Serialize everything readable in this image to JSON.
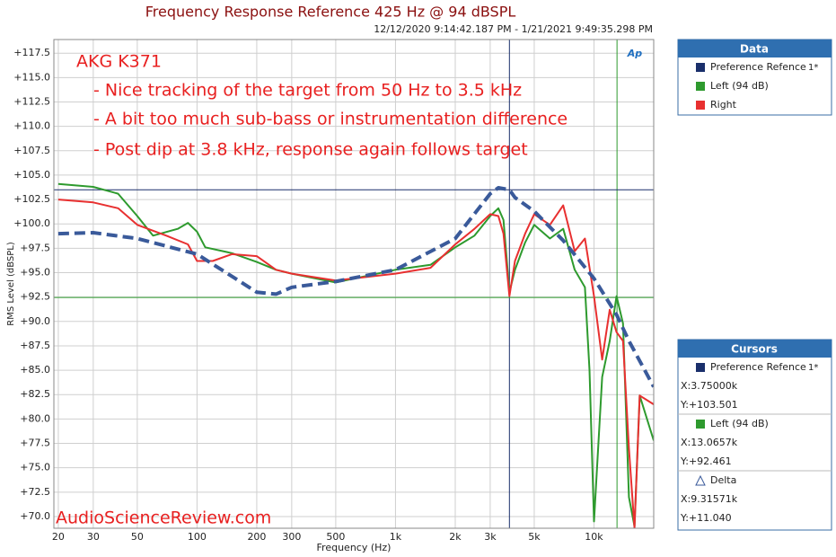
{
  "chart_data": {
    "type": "line",
    "title": "Frequency Response Reference 425 Hz @ 94 dBSPL",
    "subtitle": "12/12/2020 9:14:42.187 PM - 1/21/2021 9:49:35.298 PM",
    "annotations": [
      "AKG K371",
      "- Nice tracking of the target from 50 Hz to 3.5 kHz",
      "- A bit too much sub-bass or instrumentation difference",
      "- Post dip at 3.8 kHz, response again follows target"
    ],
    "watermark": "AudioScienceReview.com",
    "logo": "Ap",
    "xlabel": "Frequency (Hz)",
    "ylabel": "RMS Level (dBSPL)",
    "xlog": true,
    "grid": true,
    "xlim": [
      19,
      20000
    ],
    "ylim": [
      68.8,
      118.9
    ],
    "xticks": [
      20,
      30,
      50,
      100,
      200,
      300,
      500,
      {
        "value": 1000,
        "label": "1k"
      },
      {
        "value": 2000,
        "label": "2k"
      },
      {
        "value": 3000,
        "label": "3k"
      },
      {
        "value": 5000,
        "label": "5k"
      },
      {
        "value": 10000,
        "label": "10k"
      }
    ],
    "yticks": [
      {
        "value": 70,
        "label": "+70.0"
      },
      {
        "value": 72.5,
        "label": "+72.5"
      },
      {
        "value": 75,
        "label": "+75.0"
      },
      {
        "value": 77.5,
        "label": "+77.5"
      },
      {
        "value": 80,
        "label": "+80.0"
      },
      {
        "value": 82.5,
        "label": "+82.5"
      },
      {
        "value": 85,
        "label": "+85.0"
      },
      {
        "value": 87.5,
        "label": "+87.5"
      },
      {
        "value": 90,
        "label": "+90.0"
      },
      {
        "value": 92.5,
        "label": "+92.5"
      },
      {
        "value": 95,
        "label": "+95.0"
      },
      {
        "value": 97.5,
        "label": "+97.5"
      },
      {
        "value": 100,
        "label": "+100.0"
      },
      {
        "value": 102.5,
        "label": "+102.5"
      },
      {
        "value": 105,
        "label": "+105.0"
      },
      {
        "value": 107.5,
        "label": "+107.5"
      },
      {
        "value": 110,
        "label": "+110.0"
      },
      {
        "value": 112.5,
        "label": "+112.5"
      },
      {
        "value": 115,
        "label": "+115.0"
      },
      {
        "value": 117.5,
        "label": "+117.5"
      }
    ],
    "series": [
      {
        "name": "Left (94 dB)",
        "color": "#2e9a2e",
        "x": [
          20,
          30,
          40,
          50,
          60,
          80,
          90,
          100,
          110,
          150,
          200,
          250,
          300,
          500,
          1000,
          1500,
          2000,
          2500,
          3000,
          3300,
          3500,
          3750,
          4000,
          4500,
          5000,
          6000,
          7000,
          8000,
          9000,
          9500,
          10000,
          11000,
          12000,
          13000,
          14000,
          15000,
          16000,
          17000,
          20000
        ],
        "values": [
          104.1,
          103.8,
          103.1,
          100.8,
          98.8,
          99.5,
          100.1,
          99.2,
          97.6,
          97.0,
          96.1,
          95.3,
          94.9,
          94.0,
          95.3,
          95.8,
          97.6,
          98.8,
          100.8,
          101.6,
          100.4,
          93.0,
          95.3,
          98.1,
          99.9,
          98.5,
          99.5,
          95.3,
          93.5,
          85.0,
          69.5,
          84.3,
          88.0,
          92.6,
          89.8,
          72.0,
          69.0,
          82.4,
          77.8
        ]
      },
      {
        "name": "Right",
        "color": "#e83030",
        "x": [
          20,
          30,
          40,
          50,
          70,
          90,
          100,
          120,
          150,
          200,
          250,
          300,
          500,
          1000,
          1500,
          2000,
          2500,
          3000,
          3300,
          3500,
          3750,
          4000,
          4500,
          5000,
          6000,
          7000,
          8000,
          9000,
          10000,
          11000,
          12000,
          13000,
          14000,
          15000,
          16000,
          17000,
          20000
        ],
        "values": [
          102.5,
          102.2,
          101.6,
          99.9,
          98.8,
          97.9,
          96.2,
          96.2,
          96.9,
          96.7,
          95.3,
          94.9,
          94.2,
          94.9,
          95.5,
          97.9,
          99.5,
          101.0,
          100.8,
          99.0,
          92.6,
          96.2,
          99.0,
          101.0,
          99.9,
          101.9,
          97.2,
          98.5,
          92.6,
          86.1,
          91.2,
          88.9,
          88.0,
          77.0,
          68.8,
          82.4,
          81.5
        ]
      },
      {
        "name": "Preference Refence",
        "color": "#3a5a9a",
        "dashed": true,
        "x": [
          20,
          30,
          50,
          100,
          200,
          250,
          300,
          500,
          1000,
          2000,
          3000,
          3300,
          3750,
          4000,
          5000,
          7000,
          10000,
          13000,
          15000,
          20000
        ],
        "values": [
          99.0,
          99.1,
          98.5,
          96.9,
          93.0,
          92.8,
          93.5,
          94.1,
          95.3,
          98.5,
          103.1,
          103.7,
          103.5,
          102.7,
          101.3,
          98.3,
          94.4,
          90.7,
          88.0,
          83.3
        ]
      }
    ],
    "cursor_lines": [
      {
        "axis": "x",
        "value": 3750,
        "color": "#1a2f6b"
      },
      {
        "axis": "x",
        "value": 13065.7,
        "color": "#2e9a2e"
      },
      {
        "axis": "y",
        "value": 103.501,
        "color": "#1a2f6b"
      },
      {
        "axis": "y",
        "value": 92.461,
        "color": "#2e9a2e"
      }
    ],
    "data_panel": {
      "title": "Data",
      "entries": [
        {
          "name": "Preference Refence",
          "color": "#1a2f6b",
          "suffix": "1*"
        },
        {
          "name": "Left (94 dB)",
          "color": "#2e9a2e"
        },
        {
          "name": "Right",
          "color": "#e83030"
        }
      ]
    },
    "cursor_panel": {
      "title": "Cursors",
      "entries": [
        {
          "name": "Preference Refence",
          "color": "#1a2f6b",
          "suffix": "1*",
          "lines": [
            "X:3.75000k",
            "Y:+103.501"
          ]
        },
        {
          "name": "Left (94 dB)",
          "color": "#2e9a2e",
          "lines": [
            "X:13.0657k",
            "Y:+92.461"
          ]
        },
        {
          "name": "Delta",
          "color": "#3a5a9a",
          "lines": [
            "X:9.31571k",
            "Y:+11.040"
          ]
        }
      ]
    }
  }
}
